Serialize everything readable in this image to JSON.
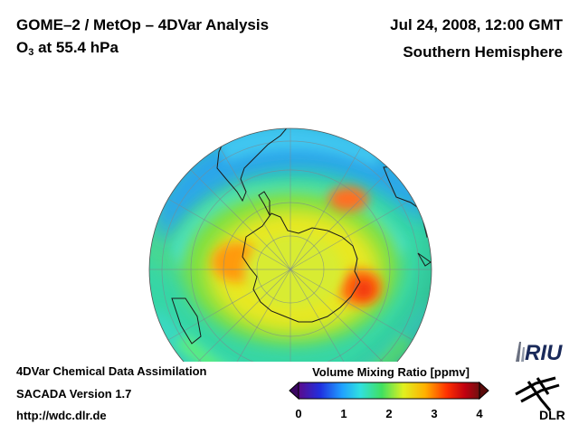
{
  "header": {
    "title_line1": "GOME–2 / MetOp – 4DVar Analysis",
    "title_line2_prefix": "O",
    "title_line2_sub": "3",
    "title_line2_suffix": " at 55.4 hPa",
    "date": "Jul 24, 2008, 12:00 GMT",
    "region": "Southern Hemisphere"
  },
  "footer": {
    "line1": "4DVar Chemical Data Assimilation",
    "line2": "SACADA Version 1.7",
    "line3": "http://wdc.dlr.de"
  },
  "colorbar": {
    "title": "Volume Mixing Ratio [ppmv]",
    "ticks": [
      "0",
      "1",
      "2",
      "3",
      "4"
    ],
    "colors": [
      "#5a0a8c",
      "#2030e0",
      "#20a0ff",
      "#30e0e0",
      "#40e060",
      "#e0f020",
      "#ffb000",
      "#ff3000",
      "#c00010",
      "#701010"
    ]
  },
  "logos": {
    "riu": "RIU",
    "dlr": "DLR"
  },
  "map": {
    "projection": "orthographic south polar",
    "field": "O3 volume mixing ratio"
  }
}
